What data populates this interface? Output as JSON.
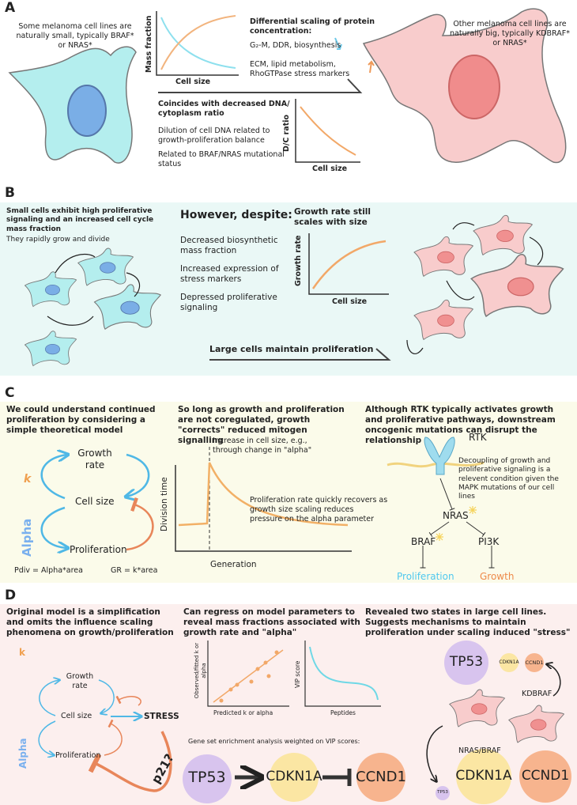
{
  "panel_a": {
    "label": "A",
    "small_cells_note": "Some melanoma cell lines are naturally small, typically BRAF* or NRAS*",
    "mass_chart": {
      "y_label": "Mass fraction",
      "x_label": "Cell size"
    },
    "scaling_title": "Differential scaling of protein concentration:",
    "decreasing_markers": "G₂-M, DDR, biosynthesis",
    "increasing_markers": "ECM, lipid metabolism, RhoGTPase stress markers",
    "dna_title": "Coincides with decreased DNA/ cytoplasm ratio",
    "dna_note": "Dilution of cell DNA related to growth-proliferation balance",
    "mutation_note": "Related to BRAF/NRAS mutational status",
    "dc_chart": {
      "y_label": "D/C ratio",
      "x_label": "Cell size"
    },
    "big_cells_note": "Other melanoma cell lines are naturally big, typically KDBRAF* or NRAS*"
  },
  "panel_b": {
    "label": "B",
    "small_cells_title": "Small cells exhibit high proliferative signaling and an increased cell cycle mass fraction",
    "small_cells_note": "They rapidly grow and divide",
    "despite_title": "However, despite:",
    "despite_items": [
      "Decreased biosynthetic mass fraction",
      "Increased expression of stress markers",
      "Depressed proliferative signaling"
    ],
    "growth_title": "Growth rate still scales with size",
    "growth_chart": {
      "y_label": "Growth rate",
      "x_label": "Cell size"
    },
    "large_cells_note": "Large cells maintain proliferation"
  },
  "panel_c": {
    "label": "C",
    "model_title": "We could understand continued proliferation by considering a simple theoretical model",
    "model": {
      "growth": "Growth rate",
      "size": "Cell size",
      "proliferation": "Proliferation",
      "k": "k",
      "alpha": "Alpha",
      "pdiv": "Pdiv = Alpha*area",
      "gr": "GR = k*area"
    },
    "correction_title": "So long as growth and proliferation are not coregulated, growth \"corrects\" reduced mitogen signalling",
    "division_chart": {
      "y_label": "Division time",
      "x_label": "Generation",
      "size_note": "Increase in cell size, e.g., through change in \"alpha\"",
      "recovery_note": "Proliferation rate quickly recovers as growth size scaling reduces pressure on the alpha parameter"
    },
    "pathway_title": "Although RTK typically activates growth and proliferative pathways, downstream oncogenic mutations can disrupt the relationship",
    "pathway": {
      "rtk": "RTK",
      "note": "Decoupling of growth and proliferative signaling is a relevent condition given the MAPK mutations of our cell lines",
      "nras": "NRAS",
      "braf": "BRAF",
      "pi3k": "PI3K",
      "proliferation": "Proliferation",
      "growth": "Growth"
    }
  },
  "panel_d": {
    "label": "D",
    "model_title": "Original model is a simplification and omits the influence scaling phenomena on growth/proliferation",
    "model": {
      "growth": "Growth rate",
      "size": "Cell size",
      "stress": "STRESS",
      "proliferation": "Proliferation",
      "p21": "p21?",
      "k": "k",
      "alpha": "Alpha"
    },
    "regression_title": "Can regress on model parameters to reveal mass fractions associated with growth rate and \"alpha\"",
    "fit_chart": {
      "y_label": "Observed/fitted k or alpha",
      "x_label": "Predicted k or alpha"
    },
    "vip_chart": {
      "y_label": "VIP score",
      "x_label": "Peptides"
    },
    "gsea_note": "Gene set enrichment analysis weighted on VIP scores:",
    "gsea_genes": [
      "TP53",
      "CDKN1A",
      "CCND1"
    ],
    "states_title": "Revealed two states in large cell lines. Suggests mechanisms to maintain proliferation under scaling induced \"stress\"",
    "kdbraf_genes": [
      "TP53",
      "CDKN1A",
      "CCND1"
    ],
    "kdbraf_label": "KDBRAF",
    "nras_braf_label": "NRAS/BRAF",
    "nras_braf_genes": [
      "TP53",
      "CDKN1A",
      "CCND1"
    ]
  }
}
